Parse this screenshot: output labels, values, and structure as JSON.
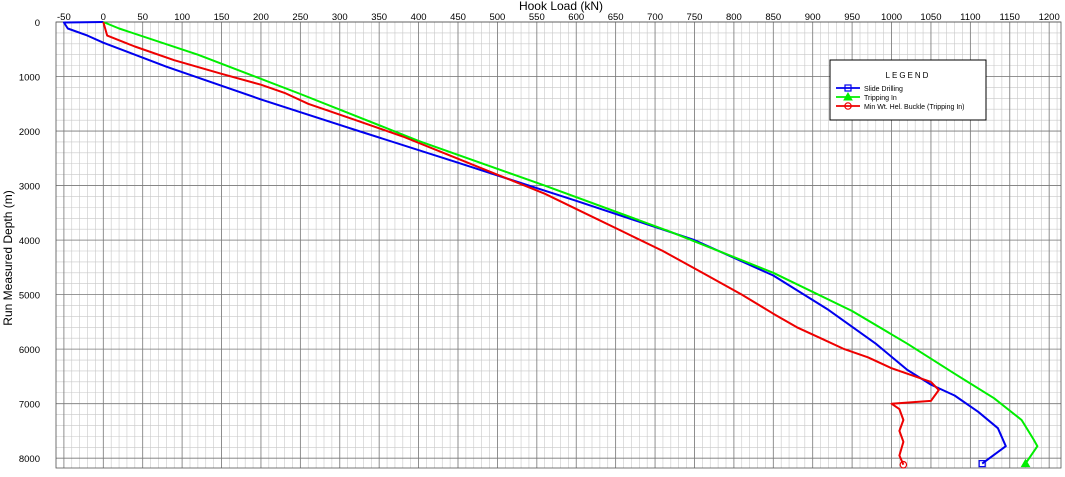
{
  "chart_data": {
    "type": "line",
    "title": "",
    "xlabel": "Hook Load (kN)",
    "ylabel": "Run Measured Depth (m)",
    "x_axis_position": "top",
    "y_axis_inverted": true,
    "xlim": [
      -60,
      1215
    ],
    "ylim": [
      0,
      8180
    ],
    "xticks": [
      -50,
      0,
      50,
      100,
      150,
      200,
      250,
      300,
      350,
      400,
      450,
      500,
      550,
      600,
      650,
      700,
      750,
      800,
      850,
      900,
      950,
      1000,
      1050,
      1100,
      1150,
      1200
    ],
    "yticks": [
      0,
      1000,
      2000,
      3000,
      4000,
      5000,
      6000,
      7000,
      8000
    ],
    "grid": true,
    "legend": {
      "title": "LEGEND",
      "placement": "top-right",
      "entries": [
        "Slide Drilling",
        "Tripping In",
        "Min Wt. Hel. Buckle (Tripping In)"
      ]
    },
    "series": [
      {
        "name": "Slide Drilling",
        "color": "#0000ee",
        "marker": "square",
        "points": [
          [
            0,
            0
          ],
          [
            -50,
            10
          ],
          [
            -45,
            120
          ],
          [
            -20,
            250
          ],
          [
            0,
            380
          ],
          [
            80,
            820
          ],
          [
            200,
            1420
          ],
          [
            320,
            1980
          ],
          [
            450,
            2580
          ],
          [
            600,
            3280
          ],
          [
            750,
            4000
          ],
          [
            850,
            4650
          ],
          [
            920,
            5280
          ],
          [
            980,
            5900
          ],
          [
            1020,
            6380
          ],
          [
            1050,
            6650
          ],
          [
            1080,
            6850
          ],
          [
            1110,
            7150
          ],
          [
            1135,
            7450
          ],
          [
            1145,
            7780
          ],
          [
            1115,
            8100
          ]
        ]
      },
      {
        "name": "Tripping In",
        "color": "#00ee00",
        "marker": "triangle",
        "points": [
          [
            0,
            0
          ],
          [
            20,
            120
          ],
          [
            120,
            600
          ],
          [
            250,
            1320
          ],
          [
            400,
            2180
          ],
          [
            560,
            3000
          ],
          [
            720,
            3850
          ],
          [
            850,
            4600
          ],
          [
            950,
            5300
          ],
          [
            1020,
            5900
          ],
          [
            1080,
            6450
          ],
          [
            1130,
            6900
          ],
          [
            1165,
            7300
          ],
          [
            1180,
            7650
          ],
          [
            1185,
            7780
          ],
          [
            1170,
            8100
          ]
        ]
      },
      {
        "name": "Min Wt. Hel. Buckle (Tripping In)",
        "color": "#ee0000",
        "marker": "circle",
        "points": [
          [
            0,
            0
          ],
          [
            5,
            250
          ],
          [
            40,
            450
          ],
          [
            90,
            700
          ],
          [
            150,
            950
          ],
          [
            200,
            1150
          ],
          [
            230,
            1300
          ],
          [
            260,
            1500
          ],
          [
            320,
            1800
          ],
          [
            380,
            2100
          ],
          [
            440,
            2450
          ],
          [
            500,
            2800
          ],
          [
            560,
            3150
          ],
          [
            610,
            3500
          ],
          [
            660,
            3850
          ],
          [
            710,
            4200
          ],
          [
            760,
            4600
          ],
          [
            810,
            5000
          ],
          [
            850,
            5350
          ],
          [
            880,
            5600
          ],
          [
            910,
            5800
          ],
          [
            940,
            6000
          ],
          [
            970,
            6150
          ],
          [
            1000,
            6350
          ],
          [
            1030,
            6500
          ],
          [
            1050,
            6600
          ],
          [
            1060,
            6750
          ],
          [
            1050,
            6950
          ],
          [
            1000,
            7000
          ],
          [
            1010,
            7100
          ],
          [
            1015,
            7300
          ],
          [
            1010,
            7500
          ],
          [
            1015,
            7700
          ],
          [
            1010,
            7950
          ],
          [
            1015,
            8120
          ]
        ]
      }
    ]
  }
}
